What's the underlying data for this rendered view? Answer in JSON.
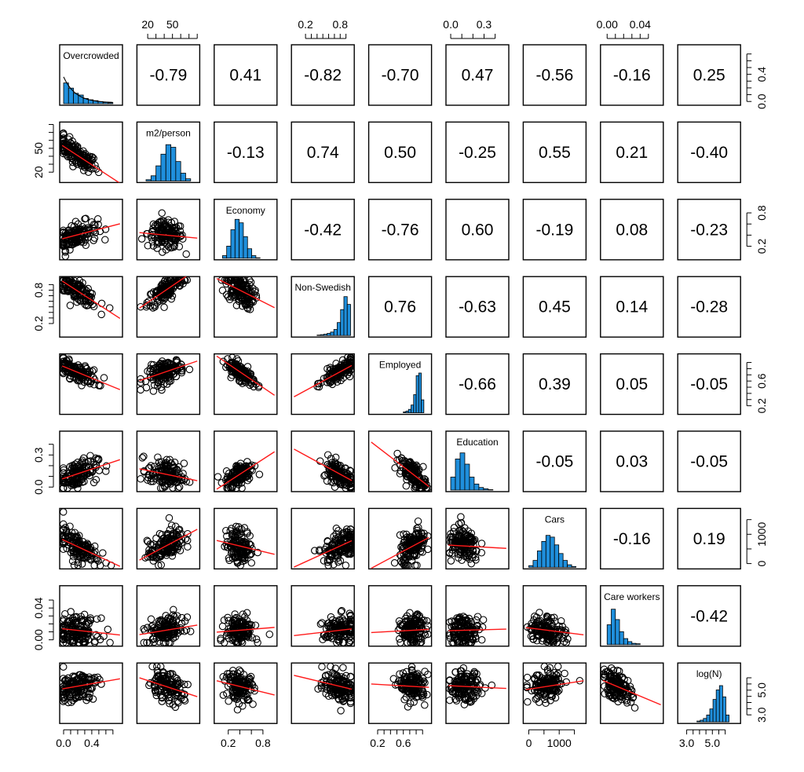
{
  "chart_data": {
    "type": "pairs",
    "variables": [
      {
        "label": "Overcrowded",
        "range": [
          -0.02,
          0.8
        ],
        "ticks": [
          "0.0",
          "0.4"
        ],
        "tick_values": [
          0.0,
          0.4
        ],
        "minor_ticks": [
          0.0,
          0.1,
          0.2,
          0.3,
          0.4,
          0.5,
          0.6,
          0.7
        ],
        "hist": [
          0.48,
          0.36,
          0.24,
          0.2,
          0.12,
          0.09,
          0.07,
          0.05,
          0.03,
          0.02
        ],
        "hist_range": [
          0.0,
          0.7
        ],
        "density": true,
        "mean": 0.18,
        "sd": 0.15
      },
      {
        "label": "m2/person",
        "range": [
          10,
          80
        ],
        "ticks": [
          "20",
          "50"
        ],
        "tick_values": [
          20,
          50
        ],
        "minor_ticks": [
          20,
          30,
          40,
          50,
          60,
          70,
          80
        ],
        "hist": [
          0.03,
          0.12,
          0.35,
          0.62,
          0.84,
          0.78,
          0.45,
          0.18,
          0.05
        ],
        "hist_range": [
          18,
          72
        ],
        "mean": 42,
        "sd": 11
      },
      {
        "label": "Economy",
        "range": [
          0.0,
          1.0
        ],
        "ticks": [
          "0.2",
          "0.8"
        ],
        "tick_values": [
          0.2,
          0.8
        ],
        "minor_ticks": [
          0.2,
          0.4,
          0.6,
          0.8
        ],
        "hist": [
          0.06,
          0.28,
          0.66,
          0.9,
          0.82,
          0.5,
          0.22,
          0.06,
          0.01
        ],
        "hist_range": [
          0.1,
          0.75
        ],
        "mean": 0.4,
        "sd": 0.12
      },
      {
        "label": "Non-Swedish",
        "range": [
          0.0,
          1.0
        ],
        "ticks": [
          "0.2",
          "0.8"
        ],
        "tick_values": [
          0.2,
          0.8
        ],
        "minor_ticks": [
          0.2,
          0.3,
          0.4,
          0.5,
          0.6,
          0.7,
          0.8,
          0.9
        ],
        "hist": [
          0.01,
          0.02,
          0.03,
          0.05,
          0.08,
          0.14,
          0.3,
          0.6,
          0.9,
          0.72
        ],
        "hist_range": [
          0.4,
          0.98
        ],
        "mean": 0.8,
        "sd": 0.15
      },
      {
        "label": "Employed",
        "range": [
          0.1,
          1.0
        ],
        "ticks": [
          "0.2",
          "0.6"
        ],
        "tick_values": [
          0.2,
          0.6
        ],
        "minor_ticks": [
          0.2,
          0.3,
          0.4,
          0.5,
          0.6,
          0.7,
          0.8,
          0.9
        ],
        "hist": [
          0.02,
          0.04,
          0.08,
          0.18,
          0.42,
          0.86,
          0.92,
          0.3
        ],
        "hist_range": [
          0.6,
          0.92
        ],
        "mean": 0.75,
        "sd": 0.1
      },
      {
        "label": "Education",
        "range": [
          -0.02,
          0.5
        ],
        "ticks": [
          "0.0",
          "0.3"
        ],
        "tick_values": [
          0.0,
          0.3
        ],
        "minor_ticks": [
          0.0,
          0.1,
          0.2,
          0.3,
          0.4
        ],
        "hist": [
          0.3,
          0.72,
          0.86,
          0.6,
          0.3,
          0.14,
          0.06,
          0.03,
          0.01
        ],
        "hist_range": [
          0.0,
          0.38
        ],
        "mean": 0.12,
        "sd": 0.07
      },
      {
        "label": "Cars",
        "range": [
          -100,
          1800
        ],
        "ticks": [
          "0",
          "1000"
        ],
        "tick_values": [
          0,
          1000
        ],
        "minor_ticks": [
          0,
          500,
          1000,
          1500
        ],
        "hist": [
          0.04,
          0.16,
          0.38,
          0.6,
          0.74,
          0.7,
          0.52,
          0.32,
          0.16,
          0.06,
          0.02
        ],
        "hist_range": [
          0,
          1550
        ],
        "mean": 600,
        "sd": 300
      },
      {
        "label": "Care workers",
        "range": [
          -0.005,
          0.065
        ],
        "ticks": [
          "0.00",
          "0.04"
        ],
        "tick_values": [
          0.0,
          0.04
        ],
        "minor_ticks": [
          0.0,
          0.01,
          0.02,
          0.03,
          0.04,
          0.05
        ],
        "hist": [
          0.46,
          0.82,
          0.58,
          0.3,
          0.14,
          0.07,
          0.03,
          0.02
        ],
        "hist_range": [
          0.0,
          0.04
        ],
        "mean": 0.012,
        "sd": 0.009
      },
      {
        "label": "log(N)",
        "range": [
          2.5,
          7.0
        ],
        "ticks": [
          "3.0",
          "5.0"
        ],
        "tick_values": [
          3.0,
          5.0
        ],
        "minor_ticks": [
          3.0,
          3.5,
          4.0,
          4.5,
          5.0,
          5.5,
          6.0
        ],
        "hist": [
          0.02,
          0.04,
          0.08,
          0.16,
          0.3,
          0.52,
          0.74,
          0.84,
          0.58,
          0.16
        ],
        "hist_range": [
          3.8,
          6.3
        ],
        "mean": 5.3,
        "sd": 0.6
      }
    ],
    "correlations": [
      [
        "",
        "-0.79",
        "0.41",
        "-0.82",
        "-0.70",
        "0.47",
        "-0.56",
        "-0.16",
        "0.25"
      ],
      [
        "",
        "",
        "-0.13",
        "0.74",
        "0.50",
        "-0.25",
        "0.55",
        "0.21",
        "-0.40"
      ],
      [
        "",
        "",
        "",
        "-0.42",
        "-0.76",
        "0.60",
        "-0.19",
        "0.08",
        "-0.23"
      ],
      [
        "",
        "",
        "",
        "",
        "0.76",
        "-0.63",
        "0.45",
        "0.14",
        "-0.28"
      ],
      [
        "",
        "",
        "",
        "",
        "",
        "-0.66",
        "0.39",
        "0.05",
        "-0.05"
      ],
      [
        "",
        "",
        "",
        "",
        "",
        "",
        "-0.05",
        "0.03",
        "-0.05"
      ],
      [
        "",
        "",
        "",
        "",
        "",
        "",
        "",
        "-0.16",
        "0.19"
      ],
      [
        "",
        "",
        "",
        "",
        "",
        "",
        "",
        "",
        "-0.42"
      ],
      [
        "",
        "",
        "",
        "",
        "",
        "",
        "",
        "",
        ""
      ]
    ],
    "axes": {
      "bottom": [
        0,
        2,
        4,
        6,
        8
      ],
      "top": [
        1,
        3,
        5,
        7
      ],
      "left": [
        1,
        3,
        5,
        7
      ],
      "right": [
        0,
        2,
        4,
        6,
        8
      ]
    },
    "colors": {
      "histogram": "#1f8fdc",
      "fit_line": "#ff1a1a",
      "points": "#000000"
    }
  }
}
